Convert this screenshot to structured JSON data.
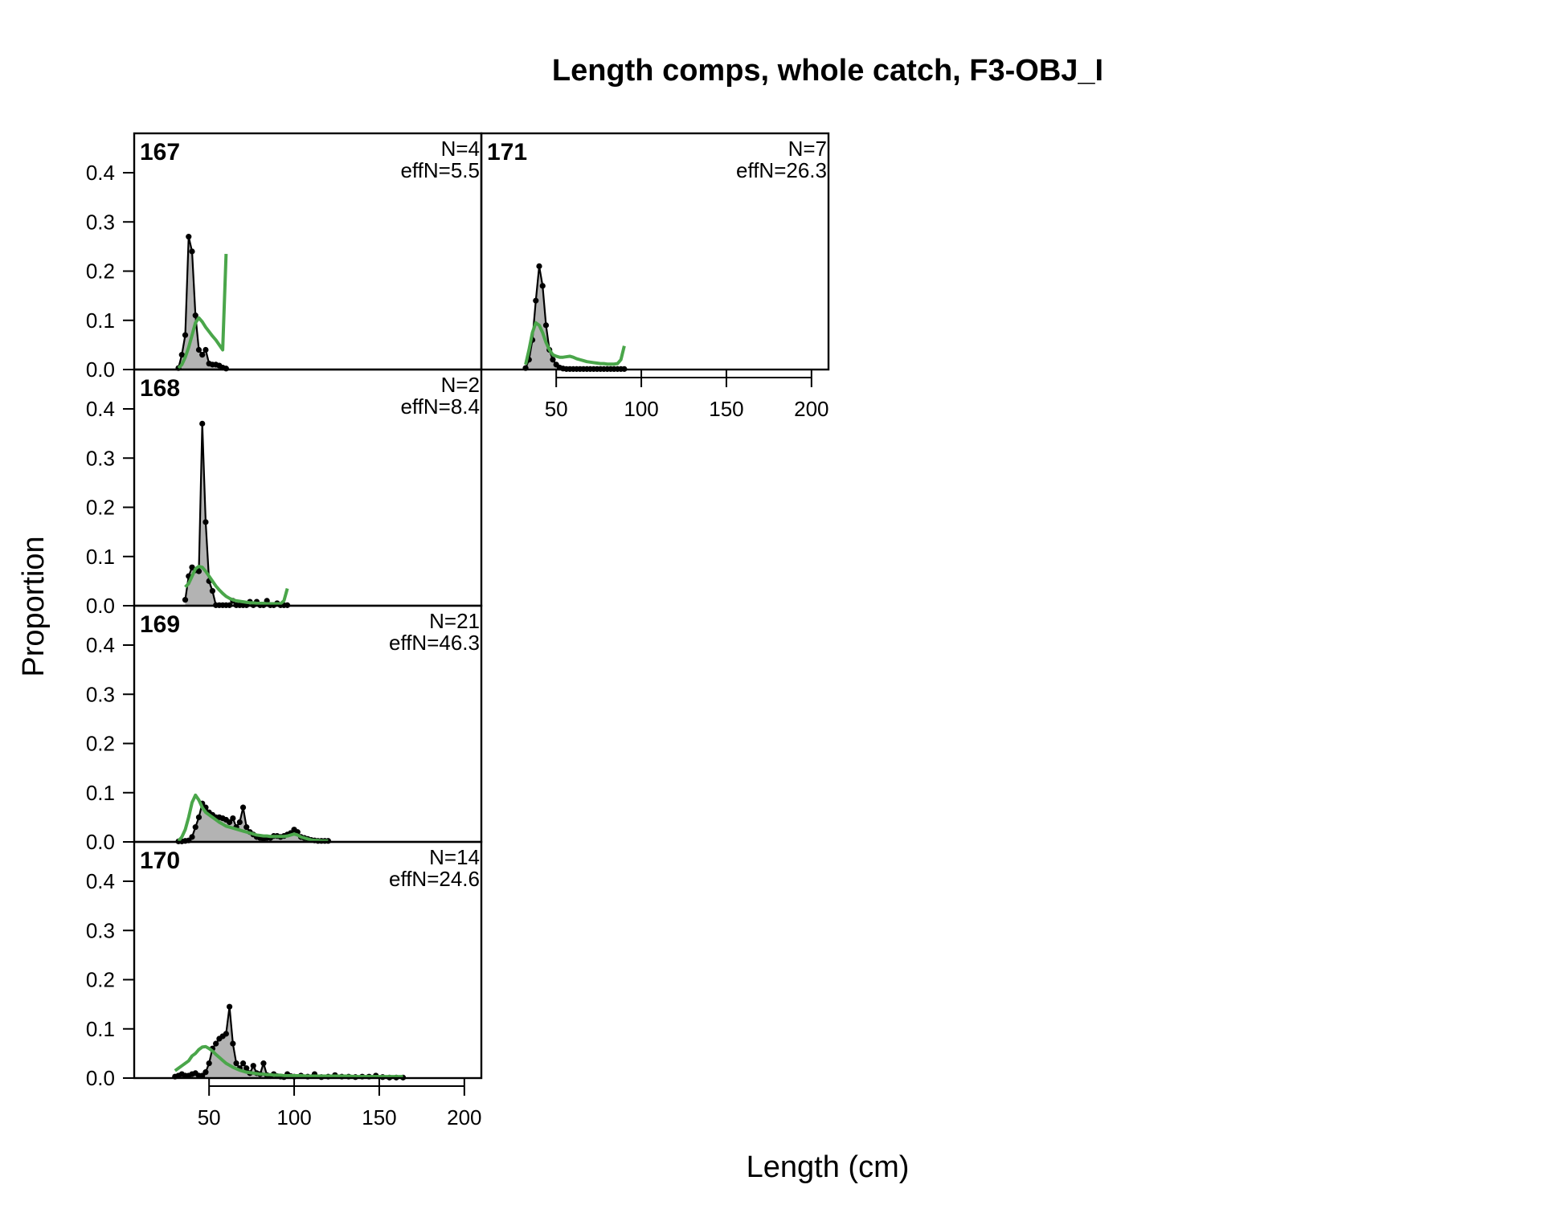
{
  "title": "Length comps, whole catch, F3-OBJ_I",
  "xlabel": "Length (cm)",
  "ylabel": "Proportion",
  "colors": {
    "observed_fill": "#b3b3b3",
    "observed_line": "#000000",
    "expected_line": "#4aa64a",
    "zero_line": "#bdbdbd"
  },
  "chart_data": {
    "type": "area",
    "title": "Length comps, whole catch, F3-OBJ_I",
    "xlabel": "Length (cm)",
    "ylabel": "Proportion",
    "xlim": [
      6,
      210
    ],
    "ylim": [
      0,
      0.48
    ],
    "x_ticks": [
      50,
      100,
      150,
      200
    ],
    "y_ticks": [
      0.0,
      0.1,
      0.2,
      0.3,
      0.4
    ],
    "legend": "none",
    "panels": [
      {
        "year": "167",
        "n_label": "N=4",
        "effn_label": "effN=5.5",
        "observed": {
          "x": [
            32,
            34,
            36,
            38,
            40,
            42,
            44,
            46,
            48,
            50,
            52,
            54,
            56,
            58,
            60
          ],
          "y": [
            0.003,
            0.03,
            0.07,
            0.27,
            0.24,
            0.11,
            0.04,
            0.03,
            0.04,
            0.012,
            0.01,
            0.01,
            0.008,
            0.004,
            0.002
          ]
        },
        "expected": {
          "x": [
            32,
            34,
            36,
            38,
            40,
            42,
            44,
            46,
            48,
            50,
            52,
            54,
            56,
            58,
            60
          ],
          "y": [
            0.003,
            0.01,
            0.025,
            0.045,
            0.07,
            0.095,
            0.105,
            0.097,
            0.086,
            0.077,
            0.068,
            0.06,
            0.05,
            0.04,
            0.235
          ]
        }
      },
      {
        "year": "168",
        "n_label": "N=2",
        "effn_label": "effN=8.4",
        "observed": {
          "x": [
            36,
            38,
            40,
            42,
            44,
            46,
            48,
            50,
            52,
            54,
            56,
            58,
            60,
            62,
            64,
            66,
            68,
            70,
            72,
            74,
            76,
            78,
            80,
            82,
            84,
            86,
            88,
            90,
            92,
            94,
            96
          ],
          "y": [
            0.012,
            0.06,
            0.078,
            0.072,
            0.07,
            0.37,
            0.17,
            0.05,
            0.03,
            0.001,
            0.001,
            0.001,
            0.001,
            0.001,
            0.01,
            0.001,
            0.001,
            0.001,
            0.001,
            0.008,
            0.001,
            0.008,
            0.001,
            0.001,
            0.01,
            0.001,
            0.001,
            0.005,
            0.001,
            0.001,
            0.001
          ]
        },
        "expected": {
          "x": [
            36,
            38,
            40,
            42,
            44,
            46,
            48,
            50,
            52,
            54,
            56,
            58,
            60,
            62,
            64,
            66,
            68,
            70,
            72,
            74,
            76,
            78,
            80,
            82,
            84,
            86,
            88,
            90,
            92,
            94,
            96
          ],
          "y": [
            0.038,
            0.045,
            0.06,
            0.075,
            0.08,
            0.078,
            0.07,
            0.06,
            0.05,
            0.04,
            0.032,
            0.025,
            0.019,
            0.015,
            0.012,
            0.01,
            0.009,
            0.008,
            0.007,
            0.006,
            0.006,
            0.005,
            0.005,
            0.005,
            0.004,
            0.004,
            0.004,
            0.004,
            0.004,
            0.01,
            0.035
          ]
        }
      },
      {
        "year": "169",
        "n_label": "N=21",
        "effn_label": "effN=46.3",
        "observed": {
          "x": [
            32,
            34,
            36,
            38,
            40,
            42,
            44,
            46,
            48,
            50,
            52,
            54,
            56,
            58,
            60,
            62,
            64,
            66,
            68,
            70,
            72,
            74,
            76,
            78,
            80,
            82,
            84,
            86,
            88,
            90,
            92,
            94,
            96,
            98,
            100,
            102,
            104,
            106,
            108,
            110,
            112,
            114,
            116,
            118,
            120
          ],
          "y": [
            0.001,
            0.001,
            0.002,
            0.003,
            0.01,
            0.03,
            0.05,
            0.078,
            0.07,
            0.06,
            0.055,
            0.05,
            0.05,
            0.048,
            0.045,
            0.04,
            0.048,
            0.03,
            0.04,
            0.07,
            0.03,
            0.02,
            0.015,
            0.01,
            0.008,
            0.006,
            0.008,
            0.008,
            0.012,
            0.012,
            0.01,
            0.012,
            0.015,
            0.018,
            0.025,
            0.02,
            0.01,
            0.008,
            0.006,
            0.004,
            0.003,
            0.002,
            0.002,
            0.002,
            0.002
          ]
        },
        "expected": {
          "x": [
            32,
            34,
            36,
            38,
            40,
            42,
            44,
            46,
            48,
            50,
            52,
            54,
            56,
            58,
            60,
            62,
            64,
            66,
            68,
            70,
            72,
            74,
            76,
            78,
            80,
            82,
            84,
            86,
            88,
            90,
            92,
            94,
            96,
            98,
            100,
            102,
            104,
            106,
            108,
            110,
            112,
            114,
            116,
            118,
            120
          ],
          "y": [
            0.002,
            0.01,
            0.025,
            0.05,
            0.08,
            0.095,
            0.085,
            0.07,
            0.06,
            0.055,
            0.05,
            0.045,
            0.04,
            0.036,
            0.032,
            0.03,
            0.028,
            0.026,
            0.024,
            0.022,
            0.02,
            0.018,
            0.016,
            0.014,
            0.013,
            0.012,
            0.012,
            0.011,
            0.011,
            0.011,
            0.011,
            0.011,
            0.012,
            0.014,
            0.016,
            0.014,
            0.01,
            0.008,
            0.006,
            0.004,
            0.003,
            0.003,
            0.002,
            0.002,
            0.002
          ]
        }
      },
      {
        "year": "170",
        "n_label": "N=14",
        "effn_label": "effN=24.6",
        "observed": {
          "x": [
            30,
            32,
            34,
            36,
            38,
            40,
            42,
            44,
            46,
            48,
            50,
            52,
            54,
            56,
            58,
            60,
            62,
            64,
            66,
            68,
            70,
            72,
            74,
            76,
            78,
            80,
            82,
            84,
            86,
            88,
            90,
            92,
            94,
            96,
            98,
            100,
            104,
            108,
            112,
            116,
            120,
            124,
            128,
            132,
            136,
            140,
            144,
            148,
            152,
            156,
            160,
            164
          ],
          "y": [
            0.003,
            0.005,
            0.008,
            0.005,
            0.005,
            0.008,
            0.01,
            0.005,
            0.005,
            0.012,
            0.03,
            0.06,
            0.07,
            0.08,
            0.085,
            0.09,
            0.145,
            0.07,
            0.03,
            0.02,
            0.03,
            0.02,
            0.01,
            0.025,
            0.01,
            0.008,
            0.03,
            0.006,
            0.004,
            0.008,
            0.004,
            0.003,
            0.002,
            0.008,
            0.004,
            0.003,
            0.005,
            0.003,
            0.008,
            0.002,
            0.003,
            0.006,
            0.003,
            0.003,
            0.002,
            0.003,
            0.003,
            0.005,
            0.002,
            0.001,
            0.001,
            0.001
          ]
        },
        "expected": {
          "x": [
            30,
            32,
            34,
            36,
            38,
            40,
            42,
            44,
            46,
            48,
            50,
            52,
            54,
            56,
            58,
            60,
            62,
            64,
            66,
            68,
            70,
            72,
            74,
            76,
            78,
            80,
            82,
            84,
            86,
            88,
            90,
            92,
            94,
            96,
            98,
            100,
            104,
            108,
            112,
            116,
            120,
            124,
            128,
            132,
            136,
            140,
            144,
            148,
            152,
            156,
            160,
            164
          ],
          "y": [
            0.015,
            0.02,
            0.025,
            0.03,
            0.035,
            0.045,
            0.05,
            0.058,
            0.063,
            0.064,
            0.06,
            0.055,
            0.048,
            0.042,
            0.036,
            0.03,
            0.026,
            0.022,
            0.019,
            0.016,
            0.014,
            0.012,
            0.011,
            0.01,
            0.009,
            0.008,
            0.008,
            0.007,
            0.007,
            0.006,
            0.006,
            0.006,
            0.005,
            0.005,
            0.005,
            0.005,
            0.005,
            0.004,
            0.004,
            0.004,
            0.004,
            0.004,
            0.004,
            0.004,
            0.003,
            0.003,
            0.003,
            0.003,
            0.003,
            0.003,
            0.003,
            0.003
          ]
        }
      },
      {
        "year": "171",
        "n_label": "N=7",
        "effn_label": "effN=26.3",
        "observed": {
          "x": [
            32,
            34,
            36,
            38,
            40,
            42,
            44,
            46,
            48,
            50,
            52,
            54,
            56,
            58,
            60,
            62,
            64,
            66,
            68,
            70,
            72,
            74,
            76,
            78,
            80,
            82,
            84,
            86,
            88,
            90
          ],
          "y": [
            0.003,
            0.02,
            0.06,
            0.14,
            0.21,
            0.17,
            0.09,
            0.04,
            0.02,
            0.01,
            0.004,
            0.002,
            0.001,
            0.001,
            0.001,
            0.001,
            0.001,
            0.001,
            0.001,
            0.001,
            0.001,
            0.001,
            0.001,
            0.001,
            0.001,
            0.001,
            0.001,
            0.001,
            0.001,
            0.001
          ]
        },
        "expected": {
          "x": [
            32,
            34,
            36,
            38,
            40,
            42,
            44,
            46,
            48,
            50,
            52,
            54,
            56,
            58,
            60,
            62,
            64,
            66,
            68,
            70,
            72,
            74,
            76,
            78,
            80,
            82,
            84,
            86,
            88,
            90
          ],
          "y": [
            0.01,
            0.04,
            0.075,
            0.095,
            0.09,
            0.075,
            0.055,
            0.04,
            0.03,
            0.027,
            0.025,
            0.025,
            0.026,
            0.027,
            0.025,
            0.022,
            0.02,
            0.018,
            0.016,
            0.015,
            0.014,
            0.013,
            0.012,
            0.012,
            0.011,
            0.011,
            0.011,
            0.012,
            0.02,
            0.048
          ]
        }
      }
    ]
  }
}
